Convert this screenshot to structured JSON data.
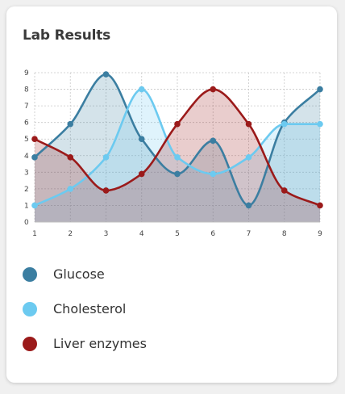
{
  "card": {
    "title": "Lab Results"
  },
  "chart_data": {
    "type": "area",
    "title": "Lab Results",
    "xlabel": "",
    "ylabel": "",
    "x": [
      1,
      2,
      3,
      4,
      5,
      6,
      7,
      8,
      9
    ],
    "xlim": [
      1,
      9
    ],
    "ylim": [
      0,
      9
    ],
    "y_ticks": [
      0,
      1,
      2,
      3,
      4,
      5,
      6,
      7,
      8,
      9
    ],
    "x_ticks": [
      1,
      2,
      3,
      4,
      5,
      6,
      7,
      8,
      9
    ],
    "grid": true,
    "legend_position": "bottom",
    "series": [
      {
        "name": "Glucose",
        "color": "#3b7ea1",
        "values": [
          3.9,
          5.9,
          8.9,
          5.0,
          2.9,
          4.9,
          1.0,
          6.0,
          8.0
        ]
      },
      {
        "name": "Cholesterol",
        "color": "#6ccaf0",
        "values": [
          1.0,
          2.0,
          3.9,
          8.0,
          3.9,
          2.9,
          3.9,
          5.9,
          5.9
        ]
      },
      {
        "name": "Liver enzymes",
        "color": "#9b1a1a",
        "values": [
          5.0,
          3.9,
          1.9,
          2.9,
          5.9,
          8.0,
          5.9,
          1.9,
          1.0
        ]
      }
    ]
  }
}
